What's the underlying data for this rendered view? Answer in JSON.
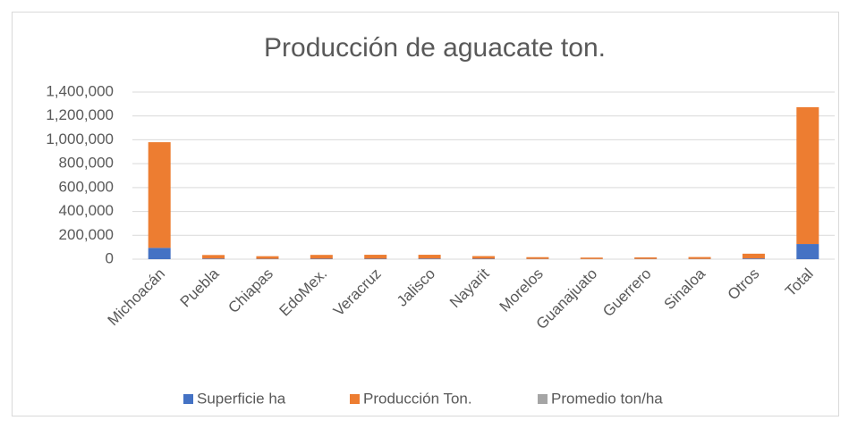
{
  "chart_data": {
    "type": "stacked_bar",
    "title": "Producción de aguacate ton.",
    "categories": [
      "Michoacán",
      "Puebla",
      "Chiapas",
      "EdoMex.",
      "Veracruz",
      "Jalisco",
      "Nayarit",
      "Morelos",
      "Guanajuato",
      "Guerrero",
      "Sinaloa",
      "Otros",
      "Total"
    ],
    "series": [
      {
        "name": "Superficie ha",
        "color": "#4472c4",
        "values": [
          95000,
          5000,
          3000,
          4000,
          4000,
          5000,
          4000,
          2000,
          1500,
          2000,
          2000,
          6000,
          127000
        ]
      },
      {
        "name": "Producción Ton.",
        "color": "#ed7d31",
        "values": [
          885000,
          30000,
          22000,
          32000,
          33000,
          32000,
          22000,
          15000,
          12000,
          13000,
          16000,
          40000,
          1146000
        ]
      },
      {
        "name": "Promedio ton/ha",
        "color": "#a5a5a5",
        "values": [
          10,
          6,
          7,
          8,
          8,
          6,
          6,
          7,
          8,
          6,
          8,
          7,
          9
        ]
      }
    ],
    "ylim": [
      0,
      1400000
    ],
    "yticks": [
      0,
      {
        "value": 200000,
        "label": "200,000"
      },
      {
        "value": 400000,
        "label": "400,000"
      },
      {
        "value": 600000,
        "label": "600,000"
      },
      {
        "value": 800000,
        "label": "800,000"
      },
      {
        "value": 1000000,
        "label": "1,000,000"
      },
      {
        "value": 1200000,
        "label": "1,200,000"
      },
      {
        "value": 1400000,
        "label": "1,400,000"
      }
    ],
    "grid": true,
    "legend": "bottom"
  }
}
